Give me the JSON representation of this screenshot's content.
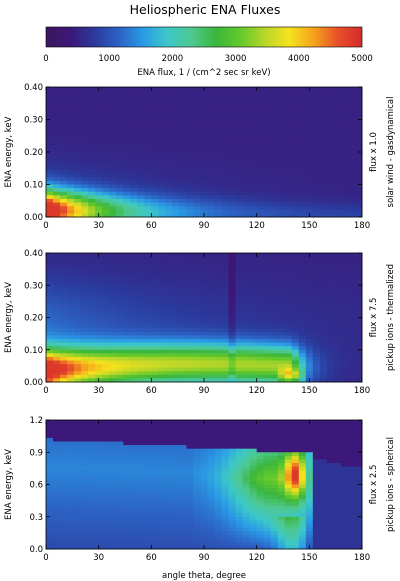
{
  "chart_data": {
    "title": "Heliospheric ENA Fluxes",
    "colorbar": {
      "label": "ENA flux,  1 / (cm^2 sec sr keV)",
      "range": [
        0,
        5000
      ],
      "ticks": [
        0,
        1000,
        2000,
        3000,
        4000,
        5000
      ],
      "colors": [
        "#3c1760",
        "#3c1778",
        "#2b3a9c",
        "#2c62c4",
        "#2a9be6",
        "#3cc8c8",
        "#4ec88f",
        "#3bb63c",
        "#63c92c",
        "#b8d62a",
        "#f5e21e",
        "#f5a41c",
        "#e8502a",
        "#d42a2a"
      ]
    },
    "xlabel": "angle theta,  degree",
    "xlim": [
      0,
      180
    ],
    "xticks": [
      0,
      30,
      60,
      90,
      120,
      150,
      180
    ],
    "panels": [
      {
        "type": "heatmap",
        "ylabel": "ENA energy,  keV",
        "ylim": [
          0,
          0.4
        ],
        "yticks": [
          "0.00",
          "0.10",
          "0.20",
          "0.30",
          "0.40"
        ],
        "right_label": "solar wind - gasdynamical",
        "scale_label": "flux  x 1.0",
        "features": [
          {
            "theta": 0,
            "energy_peak": 0.02,
            "flux": 4700
          },
          {
            "theta": 30,
            "energy_peak": 0.01,
            "flux": 2600
          },
          {
            "theta": 60,
            "energy_peak": 0.005,
            "flux": 1200
          },
          {
            "theta": 90,
            "energy_peak": 0.0,
            "flux": 500
          }
        ]
      },
      {
        "type": "heatmap",
        "ylabel": "ENA energy,  keV",
        "ylim": [
          0,
          0.4
        ],
        "yticks": [
          "0.00",
          "0.10",
          "0.20",
          "0.30",
          "0.40"
        ],
        "right_label": "pickup ions - thermalized",
        "scale_label": "flux  x 7.5",
        "features": [
          {
            "theta": 0,
            "energy_peak": 0.04,
            "flux": 4800
          },
          {
            "theta": 60,
            "energy_peak": 0.05,
            "flux": 2900
          },
          {
            "theta": 120,
            "energy_peak": 0.06,
            "flux": 2800
          },
          {
            "theta": 140,
            "energy_peak": 0.02,
            "flux": 3600
          }
        ]
      },
      {
        "type": "heatmap",
        "ylabel": "ENA energy,  keV",
        "ylim": [
          0,
          1.2
        ],
        "yticks": [
          "0.0",
          "0.3",
          "0.6",
          "0.9",
          "1.2"
        ],
        "right_label": "pickup ions - spherical",
        "scale_label": "flux  x 2.5",
        "features": [
          {
            "theta": 0,
            "energy_peak": 1.0,
            "flux": 1300
          },
          {
            "theta": 120,
            "energy_peak": 0.7,
            "flux": 3000
          },
          {
            "theta": 142,
            "energy_peak": 0.65,
            "flux": 4900
          }
        ]
      }
    ]
  }
}
